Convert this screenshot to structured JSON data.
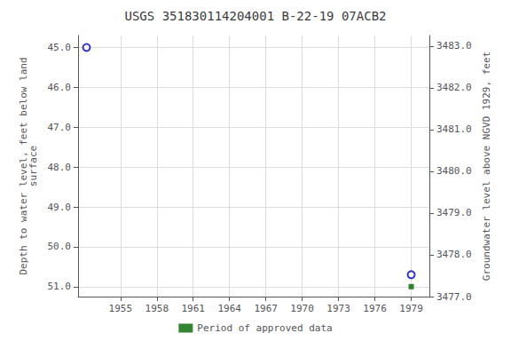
{
  "chart_data": {
    "type": "scatter",
    "title": "USGS 351830114204001 B-22-19 07ACB2",
    "y_label": "Depth to water level, feet below land\nsurface",
    "y2_label": "Groundwater level above NGVD 1929, feet",
    "series": [
      {
        "x": [
          1952.2,
          1979.0
        ],
        "values": [
          45.0,
          50.7
        ],
        "color": "#0000bb",
        "marker": "open_circle"
      },
      {
        "name": "Period of approved data",
        "x": [
          1979.0
        ],
        "values": [
          51.0
        ],
        "color": "#006600",
        "marker": "square"
      }
    ],
    "xlim": [
      1951.5,
      1980.5
    ],
    "xticks": [
      1955,
      1958,
      1961,
      1964,
      1967,
      1970,
      1973,
      1976,
      1979
    ],
    "ylim": [
      51.25,
      44.7
    ],
    "yticks": [
      {
        "value": 45.0,
        "label": "45.0"
      },
      {
        "value": 46.0,
        "label": "46.0"
      },
      {
        "value": 47.0,
        "label": "47.0"
      },
      {
        "value": 48.0,
        "label": "48.0"
      },
      {
        "value": 49.0,
        "label": "49.0"
      },
      {
        "value": 50.0,
        "label": "50.0"
      },
      {
        "value": 51.0,
        "label": "51.0"
      }
    ],
    "y2lim": [
      3477.0,
      3483.25
    ],
    "y2ticks": [
      {
        "value": 3477.0,
        "label": "3477.0"
      },
      {
        "value": 3478.0,
        "label": "3478.0"
      },
      {
        "value": 3479.0,
        "label": "3479.0"
      },
      {
        "value": 3480.0,
        "label": "3480.0"
      },
      {
        "value": 3481.0,
        "label": "3481.0"
      },
      {
        "value": 3482.0,
        "label": "3482.0"
      },
      {
        "value": 3483.0,
        "label": "3483.0"
      }
    ],
    "grid": true,
    "legend": "bottom"
  }
}
